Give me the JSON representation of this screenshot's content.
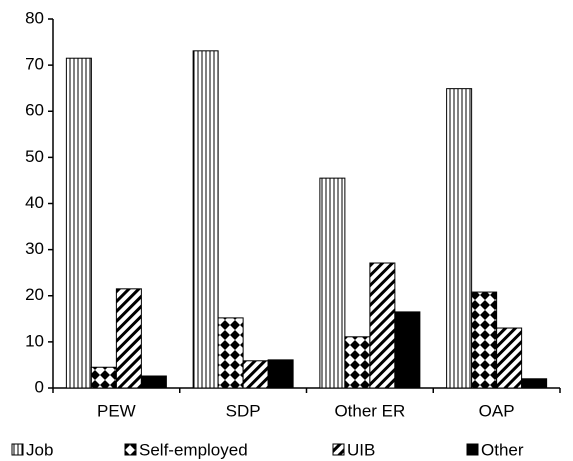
{
  "chart_data": {
    "type": "bar",
    "categories": [
      "PEW",
      "SDP",
      "Other ER",
      "OAP"
    ],
    "series": [
      {
        "name": "Job",
        "pattern": "vertical-lines",
        "values": [
          71.5,
          73.1,
          45.5,
          64.9
        ]
      },
      {
        "name": "Self-employed",
        "pattern": "checker",
        "values": [
          4.5,
          15.2,
          11.1,
          20.8
        ]
      },
      {
        "name": "UIB",
        "pattern": "diagonal",
        "values": [
          21.5,
          5.9,
          27.1,
          13.0
        ]
      },
      {
        "name": "Other",
        "pattern": "solid",
        "values": [
          2.6,
          6.1,
          16.5,
          2.0
        ]
      }
    ],
    "ylim": [
      0,
      80
    ],
    "yticks": [
      0,
      10,
      20,
      30,
      40,
      50,
      60,
      70,
      80
    ],
    "legend": "bottom"
  }
}
